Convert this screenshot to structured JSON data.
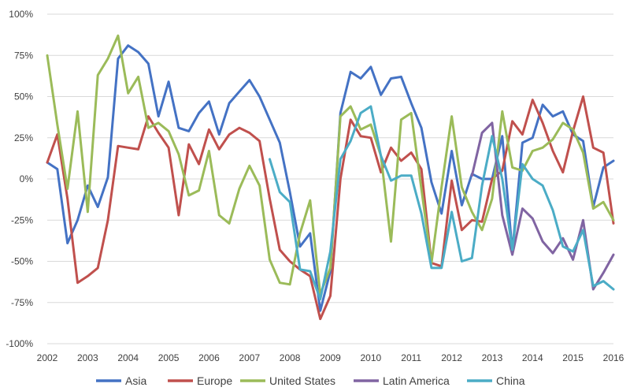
{
  "chart_data": {
    "type": "line",
    "grid": true,
    "legend_position": "bottom",
    "ylim": [
      -1.0,
      1.0
    ],
    "xlim": [
      2002,
      2016
    ],
    "y_ticks": [
      -1.0,
      -0.75,
      -0.5,
      -0.25,
      0,
      0.25,
      0.5,
      0.75,
      1.0
    ],
    "y_tick_labels": [
      "-100%",
      "-75%",
      "-50%",
      "-25%",
      "0%",
      "25%",
      "50%",
      "75%",
      "100%"
    ],
    "x_ticks": [
      2002,
      2003,
      2004,
      2005,
      2006,
      2007,
      2008,
      2009,
      2010,
      2011,
      2012,
      2013,
      2014,
      2015,
      2016
    ],
    "x_tick_labels": [
      "2002",
      "2003",
      "2004",
      "2005",
      "2006",
      "2007",
      "2008",
      "2009",
      "2010",
      "2011",
      "2012",
      "2013",
      "2014",
      "2015",
      "2016"
    ],
    "series": [
      {
        "name": "Asia",
        "color": "#4472C4",
        "points": [
          [
            2002.0,
            0.1
          ],
          [
            2002.25,
            0.06
          ],
          [
            2002.5,
            -0.39
          ],
          [
            2002.75,
            -0.25
          ],
          [
            2003.0,
            -0.04
          ],
          [
            2003.25,
            -0.17
          ],
          [
            2003.5,
            0.01
          ],
          [
            2003.75,
            0.73
          ],
          [
            2004.0,
            0.81
          ],
          [
            2004.25,
            0.77
          ],
          [
            2004.5,
            0.7
          ],
          [
            2004.75,
            0.38
          ],
          [
            2005.0,
            0.59
          ],
          [
            2005.25,
            0.31
          ],
          [
            2005.5,
            0.29
          ],
          [
            2005.75,
            0.4
          ],
          [
            2006.0,
            0.47
          ],
          [
            2006.25,
            0.27
          ],
          [
            2006.5,
            0.46
          ],
          [
            2006.75,
            0.53
          ],
          [
            2007.0,
            0.6
          ],
          [
            2007.25,
            0.5
          ],
          [
            2007.5,
            0.36
          ],
          [
            2007.75,
            0.22
          ],
          [
            2008.0,
            -0.08
          ],
          [
            2008.25,
            -0.41
          ],
          [
            2008.5,
            -0.33
          ],
          [
            2008.75,
            -0.8
          ],
          [
            2009.0,
            -0.56
          ],
          [
            2009.25,
            0.4
          ],
          [
            2009.5,
            0.65
          ],
          [
            2009.75,
            0.61
          ],
          [
            2010.0,
            0.68
          ],
          [
            2010.25,
            0.51
          ],
          [
            2010.5,
            0.61
          ],
          [
            2010.75,
            0.62
          ],
          [
            2011.0,
            0.46
          ],
          [
            2011.25,
            0.31
          ],
          [
            2011.5,
            -0.02
          ],
          [
            2011.75,
            -0.21
          ],
          [
            2012.0,
            0.17
          ],
          [
            2012.25,
            -0.16
          ],
          [
            2012.5,
            0.03
          ],
          [
            2012.75,
            0.0
          ],
          [
            2013.0,
            0.0
          ],
          [
            2013.25,
            0.26
          ],
          [
            2013.5,
            -0.44
          ],
          [
            2013.75,
            0.22
          ],
          [
            2014.0,
            0.25
          ],
          [
            2014.25,
            0.45
          ],
          [
            2014.5,
            0.38
          ],
          [
            2014.75,
            0.41
          ],
          [
            2015.0,
            0.27
          ],
          [
            2015.25,
            0.23
          ],
          [
            2015.5,
            -0.17
          ],
          [
            2015.75,
            0.07
          ],
          [
            2016.0,
            0.11
          ]
        ]
      },
      {
        "name": "Europe",
        "color": "#C0504D",
        "points": [
          [
            2002.0,
            0.1
          ],
          [
            2002.25,
            0.27
          ],
          [
            2002.5,
            -0.12
          ],
          [
            2002.75,
            -0.63
          ],
          [
            2003.0,
            -0.59
          ],
          [
            2003.25,
            -0.54
          ],
          [
            2003.5,
            -0.25
          ],
          [
            2003.75,
            0.2
          ],
          [
            2004.0,
            0.19
          ],
          [
            2004.25,
            0.18
          ],
          [
            2004.5,
            0.38
          ],
          [
            2004.75,
            0.28
          ],
          [
            2005.0,
            0.19
          ],
          [
            2005.25,
            -0.22
          ],
          [
            2005.5,
            0.21
          ],
          [
            2005.75,
            0.09
          ],
          [
            2006.0,
            0.3
          ],
          [
            2006.25,
            0.18
          ],
          [
            2006.5,
            0.27
          ],
          [
            2006.75,
            0.31
          ],
          [
            2007.0,
            0.28
          ],
          [
            2007.25,
            0.23
          ],
          [
            2007.5,
            -0.12
          ],
          [
            2007.75,
            -0.43
          ],
          [
            2008.0,
            -0.5
          ],
          [
            2008.25,
            -0.55
          ],
          [
            2008.5,
            -0.59
          ],
          [
            2008.75,
            -0.85
          ],
          [
            2009.0,
            -0.71
          ],
          [
            2009.25,
            0.0
          ],
          [
            2009.5,
            0.36
          ],
          [
            2009.75,
            0.26
          ],
          [
            2010.0,
            0.25
          ],
          [
            2010.25,
            0.04
          ],
          [
            2010.5,
            0.19
          ],
          [
            2010.75,
            0.11
          ],
          [
            2011.0,
            0.16
          ],
          [
            2011.25,
            0.06
          ],
          [
            2011.5,
            -0.51
          ],
          [
            2011.75,
            -0.53
          ],
          [
            2012.0,
            -0.01
          ],
          [
            2012.25,
            -0.31
          ],
          [
            2012.5,
            -0.25
          ],
          [
            2012.75,
            -0.26
          ],
          [
            2013.0,
            0.0
          ],
          [
            2013.25,
            0.05
          ],
          [
            2013.5,
            0.35
          ],
          [
            2013.75,
            0.27
          ],
          [
            2014.0,
            0.48
          ],
          [
            2014.25,
            0.34
          ],
          [
            2014.5,
            0.17
          ],
          [
            2014.75,
            0.04
          ],
          [
            2015.0,
            0.29
          ],
          [
            2015.25,
            0.5
          ],
          [
            2015.5,
            0.19
          ],
          [
            2015.75,
            0.16
          ],
          [
            2016.0,
            -0.27
          ]
        ]
      },
      {
        "name": "United States",
        "color": "#9BBB59",
        "points": [
          [
            2002.0,
            0.75
          ],
          [
            2002.25,
            0.33
          ],
          [
            2002.5,
            -0.06
          ],
          [
            2002.75,
            0.41
          ],
          [
            2003.0,
            -0.2
          ],
          [
            2003.25,
            0.63
          ],
          [
            2003.5,
            0.73
          ],
          [
            2003.75,
            0.87
          ],
          [
            2004.0,
            0.52
          ],
          [
            2004.25,
            0.62
          ],
          [
            2004.5,
            0.31
          ],
          [
            2004.75,
            0.34
          ],
          [
            2005.0,
            0.29
          ],
          [
            2005.25,
            0.15
          ],
          [
            2005.5,
            -0.1
          ],
          [
            2005.75,
            -0.07
          ],
          [
            2006.0,
            0.17
          ],
          [
            2006.25,
            -0.22
          ],
          [
            2006.5,
            -0.27
          ],
          [
            2006.75,
            -0.06
          ],
          [
            2007.0,
            0.08
          ],
          [
            2007.25,
            -0.04
          ],
          [
            2007.5,
            -0.49
          ],
          [
            2007.75,
            -0.63
          ],
          [
            2008.0,
            -0.64
          ],
          [
            2008.25,
            -0.33
          ],
          [
            2008.5,
            -0.13
          ],
          [
            2008.75,
            -0.7
          ],
          [
            2009.0,
            -0.54
          ],
          [
            2009.25,
            0.38
          ],
          [
            2009.5,
            0.44
          ],
          [
            2009.75,
            0.3
          ],
          [
            2010.0,
            0.33
          ],
          [
            2010.25,
            0.14
          ],
          [
            2010.5,
            -0.38
          ],
          [
            2010.75,
            0.36
          ],
          [
            2011.0,
            0.4
          ],
          [
            2011.25,
            -0.06
          ],
          [
            2011.5,
            -0.51
          ],
          [
            2011.75,
            -0.05
          ],
          [
            2012.0,
            0.38
          ],
          [
            2012.25,
            -0.05
          ],
          [
            2012.5,
            -0.2
          ],
          [
            2012.75,
            -0.31
          ],
          [
            2013.0,
            -0.12
          ],
          [
            2013.25,
            0.41
          ],
          [
            2013.5,
            0.07
          ],
          [
            2013.75,
            0.05
          ],
          [
            2014.0,
            0.17
          ],
          [
            2014.25,
            0.19
          ],
          [
            2014.5,
            0.24
          ],
          [
            2014.75,
            0.34
          ],
          [
            2015.0,
            0.3
          ],
          [
            2015.25,
            0.16
          ],
          [
            2015.5,
            -0.18
          ],
          [
            2015.75,
            -0.14
          ],
          [
            2016.0,
            -0.25
          ]
        ]
      },
      {
        "name": "Latin America",
        "color": "#8064A2",
        "points": [
          [
            2012.5,
            0.02
          ],
          [
            2012.75,
            0.28
          ],
          [
            2013.0,
            0.34
          ],
          [
            2013.25,
            -0.22
          ],
          [
            2013.5,
            -0.46
          ],
          [
            2013.75,
            -0.18
          ],
          [
            2014.0,
            -0.24
          ],
          [
            2014.25,
            -0.38
          ],
          [
            2014.5,
            -0.45
          ],
          [
            2014.75,
            -0.36
          ],
          [
            2015.0,
            -0.49
          ],
          [
            2015.25,
            -0.25
          ],
          [
            2015.5,
            -0.67
          ],
          [
            2015.75,
            -0.57
          ],
          [
            2016.0,
            -0.46
          ]
        ]
      },
      {
        "name": "China",
        "color": "#4BACC6",
        "points": [
          [
            2007.5,
            0.12
          ],
          [
            2007.75,
            -0.08
          ],
          [
            2008.0,
            -0.14
          ],
          [
            2008.25,
            -0.55
          ],
          [
            2008.5,
            -0.56
          ],
          [
            2008.75,
            -0.73
          ],
          [
            2009.0,
            -0.44
          ],
          [
            2009.25,
            0.12
          ],
          [
            2009.5,
            0.23
          ],
          [
            2009.75,
            0.4
          ],
          [
            2010.0,
            0.44
          ],
          [
            2010.25,
            0.14
          ],
          [
            2010.5,
            -0.01
          ],
          [
            2010.75,
            0.02
          ],
          [
            2011.0,
            0.02
          ],
          [
            2011.25,
            -0.21
          ],
          [
            2011.5,
            -0.54
          ],
          [
            2011.75,
            -0.54
          ],
          [
            2012.0,
            -0.2
          ],
          [
            2012.25,
            -0.5
          ],
          [
            2012.5,
            -0.48
          ],
          [
            2012.75,
            -0.04
          ],
          [
            2013.0,
            0.26
          ],
          [
            2013.25,
            0.0
          ],
          [
            2013.5,
            -0.43
          ],
          [
            2013.75,
            0.09
          ],
          [
            2014.0,
            0.0
          ],
          [
            2014.25,
            -0.04
          ],
          [
            2014.5,
            -0.19
          ],
          [
            2014.75,
            -0.41
          ],
          [
            2015.0,
            -0.44
          ],
          [
            2015.25,
            -0.31
          ],
          [
            2015.5,
            -0.65
          ],
          [
            2015.75,
            -0.62
          ],
          [
            2016.0,
            -0.67
          ]
        ]
      }
    ]
  }
}
